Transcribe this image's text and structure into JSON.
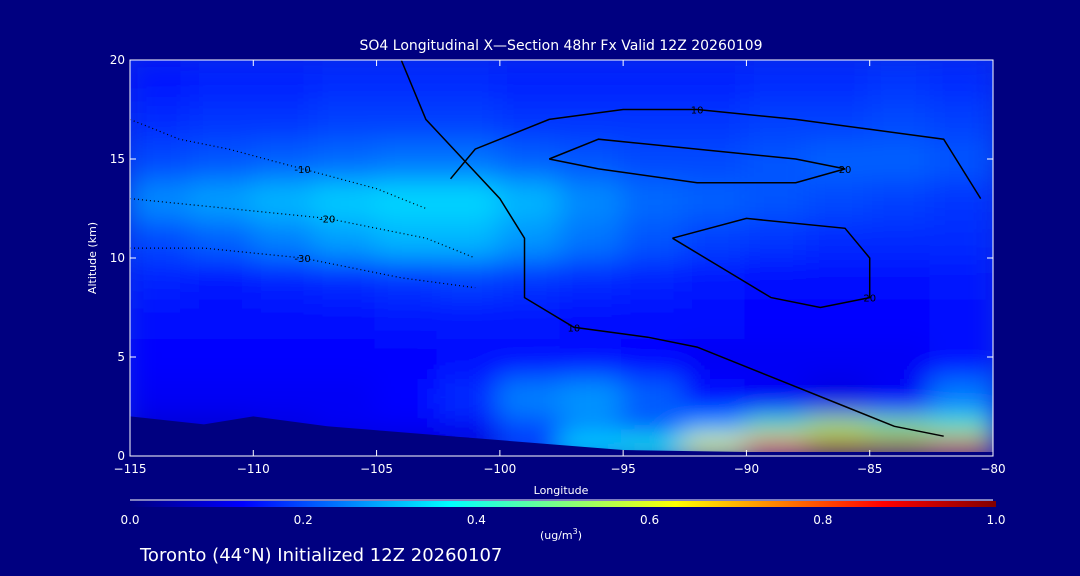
{
  "chart_data": {
    "type": "heatmap",
    "title": "SO4 Longitudinal X—Section 48hr  Fx Valid 12Z 20260109",
    "xlabel": "Longitude",
    "ylabel": "Altitude (km)",
    "xlim": [
      -115,
      -80
    ],
    "ylim": [
      0,
      20
    ],
    "xticks": [
      "−115",
      "−110",
      "−105",
      "−100",
      "−95",
      "−90",
      "−85",
      "−80"
    ],
    "xtick_values": [
      -115,
      -110,
      -105,
      -100,
      -95,
      -90,
      -85,
      -80
    ],
    "yticks": [
      "0",
      "5",
      "10",
      "15",
      "20"
    ],
    "ytick_values": [
      0,
      5,
      10,
      15,
      20
    ],
    "colorbar": {
      "range": [
        0,
        1
      ],
      "ticks": [
        "0.0",
        "0.2",
        "0.4",
        "0.6",
        "0.8",
        "1.0"
      ],
      "units_prefix": "(ug/m",
      "units_sup": "3",
      "units_suffix": ")"
    },
    "grid_lon": [
      -113.75,
      -111.25,
      -108.75,
      -106.25,
      -103.75,
      -101.25,
      -98.75,
      -96.25,
      -93.75,
      -91.25,
      -88.75,
      -86.25,
      -83.75,
      -81.25
    ],
    "grid_alt": [
      [
        0,
        1
      ],
      [
        1,
        2
      ],
      [
        2,
        4
      ],
      [
        4,
        6
      ],
      [
        6,
        8
      ],
      [
        8,
        10
      ],
      [
        10,
        12
      ],
      [
        12,
        14
      ],
      [
        14,
        16
      ],
      [
        16,
        18
      ],
      [
        18,
        20
      ]
    ],
    "values": [
      [
        null,
        null,
        null,
        null,
        null,
        0.08,
        0.2,
        0.35,
        0.4,
        0.62,
        0.82,
        0.95,
        0.95,
        0.9
      ],
      [
        null,
        null,
        0.1,
        0.12,
        0.12,
        0.12,
        0.18,
        0.25,
        0.2,
        0.3,
        0.45,
        0.55,
        0.5,
        0.45
      ],
      [
        0.12,
        0.12,
        0.12,
        0.12,
        0.13,
        0.17,
        0.25,
        0.27,
        0.22,
        0.14,
        0.12,
        0.1,
        0.12,
        0.25
      ],
      [
        0.13,
        0.13,
        0.13,
        0.13,
        0.13,
        0.14,
        0.14,
        0.14,
        0.13,
        0.12,
        0.12,
        0.12,
        0.12,
        0.14
      ],
      [
        0.14,
        0.14,
        0.14,
        0.14,
        0.15,
        0.15,
        0.15,
        0.14,
        0.14,
        0.14,
        0.13,
        0.13,
        0.13,
        0.14
      ],
      [
        0.16,
        0.15,
        0.16,
        0.17,
        0.18,
        0.19,
        0.18,
        0.17,
        0.16,
        0.15,
        0.14,
        0.14,
        0.14,
        0.15
      ],
      [
        0.2,
        0.22,
        0.25,
        0.28,
        0.3,
        0.3,
        0.27,
        0.24,
        0.21,
        0.19,
        0.18,
        0.17,
        0.17,
        0.17
      ],
      [
        0.26,
        0.28,
        0.3,
        0.32,
        0.33,
        0.33,
        0.3,
        0.26,
        0.23,
        0.22,
        0.21,
        0.2,
        0.19,
        0.18
      ],
      [
        0.2,
        0.21,
        0.22,
        0.23,
        0.24,
        0.24,
        0.22,
        0.21,
        0.2,
        0.2,
        0.21,
        0.22,
        0.22,
        0.21
      ],
      [
        0.17,
        0.18,
        0.18,
        0.19,
        0.19,
        0.19,
        0.18,
        0.18,
        0.18,
        0.18,
        0.19,
        0.19,
        0.2,
        0.19
      ],
      [
        0.15,
        0.16,
        0.16,
        0.17,
        0.17,
        0.17,
        0.16,
        0.16,
        0.16,
        0.16,
        0.17,
        0.17,
        0.18,
        0.17
      ]
    ],
    "terrain": {
      "lon": [
        -115,
        -112,
        -110,
        -107,
        -105,
        -102,
        -100,
        -97,
        -95,
        -90,
        -85,
        -80
      ],
      "alt": [
        2,
        1.6,
        2,
        1.5,
        1.3,
        1,
        0.8,
        0.5,
        0.3,
        0.2,
        0.2,
        0.2
      ]
    },
    "contours": [
      {
        "label": "10",
        "lon": [
          -104,
          -103,
          -101.5,
          -100,
          -99,
          -99,
          -97,
          -94,
          -92,
          -89,
          -86,
          -84,
          -82
        ],
        "alt": [
          20,
          17,
          15,
          13,
          11,
          8,
          6.5,
          6,
          5.5,
          4,
          2.5,
          1.5,
          1
        ]
      },
      {
        "label": "10",
        "lon": [
          -102,
          -101,
          -98,
          -95,
          -92,
          -88,
          -85,
          -82,
          -80.5
        ],
        "alt": [
          14,
          15.5,
          17,
          17.5,
          17.5,
          17,
          16.5,
          16,
          13
        ]
      },
      {
        "label": "20",
        "lon": [
          -98,
          -96,
          -92,
          -88,
          -86,
          -88,
          -92,
          -96,
          -98
        ],
        "alt": [
          15,
          16,
          15.5,
          15,
          14.5,
          13.8,
          13.8,
          14.5,
          15
        ]
      },
      {
        "label": "20",
        "lon": [
          -93,
          -90,
          -86,
          -85,
          -85,
          -87,
          -89,
          -91,
          -93
        ],
        "alt": [
          11,
          12,
          11.5,
          10,
          8,
          7.5,
          8,
          9.5,
          11
        ]
      },
      {
        "label": "-20",
        "lon": [
          -115,
          -111,
          -107,
          -103,
          -101
        ],
        "alt": [
          13,
          12.5,
          12,
          11,
          10
        ]
      },
      {
        "label": "-30",
        "lon": [
          -115,
          -112,
          -108,
          -104,
          -101
        ],
        "alt": [
          10.5,
          10.5,
          10,
          9,
          8.5
        ]
      },
      {
        "label": "-10",
        "lon": [
          -115,
          -113,
          -111,
          -108,
          -105,
          -103
        ],
        "alt": [
          17,
          16,
          15.5,
          14.5,
          13.5,
          12.5
        ]
      }
    ]
  },
  "footer": {
    "station_text": "Toronto (44°N) Initialized 12Z 20260107"
  }
}
